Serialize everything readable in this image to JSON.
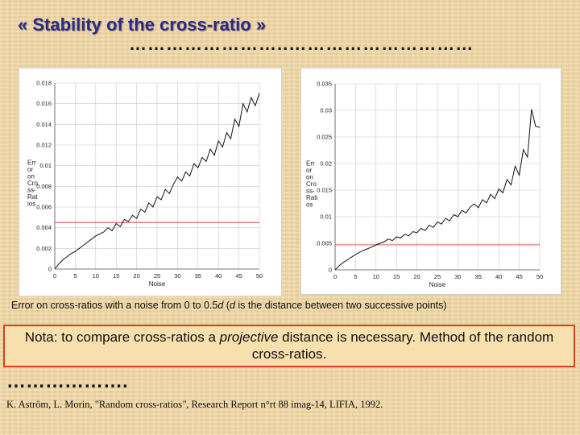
{
  "title": "« Stability of the cross-ratio »",
  "dots_top": "……………………..…………………………",
  "caption": {
    "before": "Error on cross-ratios with a noise from 0 to 0.5",
    "d1": "d",
    "middle": " (",
    "d2": "d",
    "after": " is the distance between two successive points)"
  },
  "nota": {
    "before": "Nota: to compare cross-ratios a ",
    "em": "projective",
    "after": " distance is necessary.  Method of the random cross-ratios."
  },
  "dots_bottom": "……………….",
  "reference": {
    "before": "K. Aström, L. Morin, \"Random cross-ratios",
    "quote": "\"",
    "after": ", Research Report n°rt 88 imag-14, LIFIA, 1992."
  },
  "chart_data": [
    {
      "type": "line",
      "xlabel": "Noise",
      "ylabel_lines": [
        "Err",
        "or",
        "on",
        "Cro",
        "ss-",
        "Rat",
        "ios"
      ],
      "xlim": [
        0,
        50
      ],
      "ylim": [
        0,
        0.018
      ],
      "x_ticks": [
        "0",
        "5",
        "10",
        "15",
        "20",
        "25",
        "30",
        "35",
        "40",
        "45",
        "50"
      ],
      "y_ticks": [
        "0",
        "0.002",
        "0.004",
        "0.006",
        "0.008",
        "0.01",
        "0.012",
        "0.014",
        "0.016",
        "0.018"
      ],
      "grid": true,
      "reference_line": 0.0045,
      "reference_color": "#d04040",
      "line_color": "#111111",
      "x": [
        0,
        1,
        2,
        3,
        4,
        5,
        6,
        7,
        8,
        9,
        10,
        11,
        12,
        13,
        14,
        15,
        16,
        17,
        18,
        19,
        20,
        21,
        22,
        23,
        24,
        25,
        26,
        27,
        28,
        29,
        30,
        31,
        32,
        33,
        34,
        35,
        36,
        37,
        38,
        39,
        40,
        41,
        42,
        43,
        44,
        45,
        46,
        47,
        48,
        49,
        50
      ],
      "values": [
        0,
        0.0005,
        0.0009,
        0.0012,
        0.0015,
        0.0017,
        0.002,
        0.0023,
        0.0026,
        0.0029,
        0.0032,
        0.0034,
        0.0036,
        0.004,
        0.0037,
        0.0044,
        0.0041,
        0.0048,
        0.0046,
        0.0052,
        0.0049,
        0.0058,
        0.0055,
        0.0064,
        0.006,
        0.007,
        0.0067,
        0.0077,
        0.0073,
        0.0082,
        0.0089,
        0.0085,
        0.0094,
        0.009,
        0.0102,
        0.0098,
        0.0108,
        0.0104,
        0.0116,
        0.011,
        0.0124,
        0.0118,
        0.0132,
        0.0126,
        0.0145,
        0.0138,
        0.016,
        0.0152,
        0.0166,
        0.0158,
        0.017
      ]
    },
    {
      "type": "line",
      "xlabel": "Noise",
      "ylabel_lines": [
        "Err",
        "or",
        "on",
        "Cro",
        "ss-",
        "Rati",
        "os"
      ],
      "xlim": [
        0,
        50
      ],
      "ylim": [
        0,
        0.035
      ],
      "x_ticks": [
        "0",
        "5",
        "10",
        "15",
        "20",
        "25",
        "30",
        "35",
        "40",
        "45",
        "50"
      ],
      "y_ticks": [
        "0",
        "0.005",
        "0.01",
        "0.015",
        "0.02",
        "0.025",
        "0.03",
        "0.035"
      ],
      "grid": true,
      "reference_line": 0.0047,
      "reference_color": "#d04040",
      "line_color": "#111111",
      "x": [
        0,
        1,
        2,
        3,
        4,
        5,
        6,
        7,
        8,
        9,
        10,
        11,
        12,
        13,
        14,
        15,
        16,
        17,
        18,
        19,
        20,
        21,
        22,
        23,
        24,
        25,
        26,
        27,
        28,
        29,
        30,
        31,
        32,
        33,
        34,
        35,
        36,
        37,
        38,
        39,
        40,
        41,
        42,
        43,
        44,
        45,
        46,
        47,
        48,
        49,
        50
      ],
      "values": [
        0,
        0.0008,
        0.0014,
        0.0019,
        0.0024,
        0.0029,
        0.0033,
        0.0037,
        0.004,
        0.0043,
        0.0047,
        0.005,
        0.0053,
        0.0058,
        0.0055,
        0.0062,
        0.006,
        0.0067,
        0.0064,
        0.0072,
        0.007,
        0.0078,
        0.0074,
        0.0084,
        0.008,
        0.009,
        0.0086,
        0.0097,
        0.0092,
        0.0104,
        0.01,
        0.0112,
        0.0107,
        0.0118,
        0.0124,
        0.0117,
        0.0132,
        0.0126,
        0.0142,
        0.0134,
        0.0152,
        0.0145,
        0.017,
        0.016,
        0.0195,
        0.0178,
        0.0226,
        0.0212,
        0.0302,
        0.027,
        0.0268
      ]
    }
  ]
}
